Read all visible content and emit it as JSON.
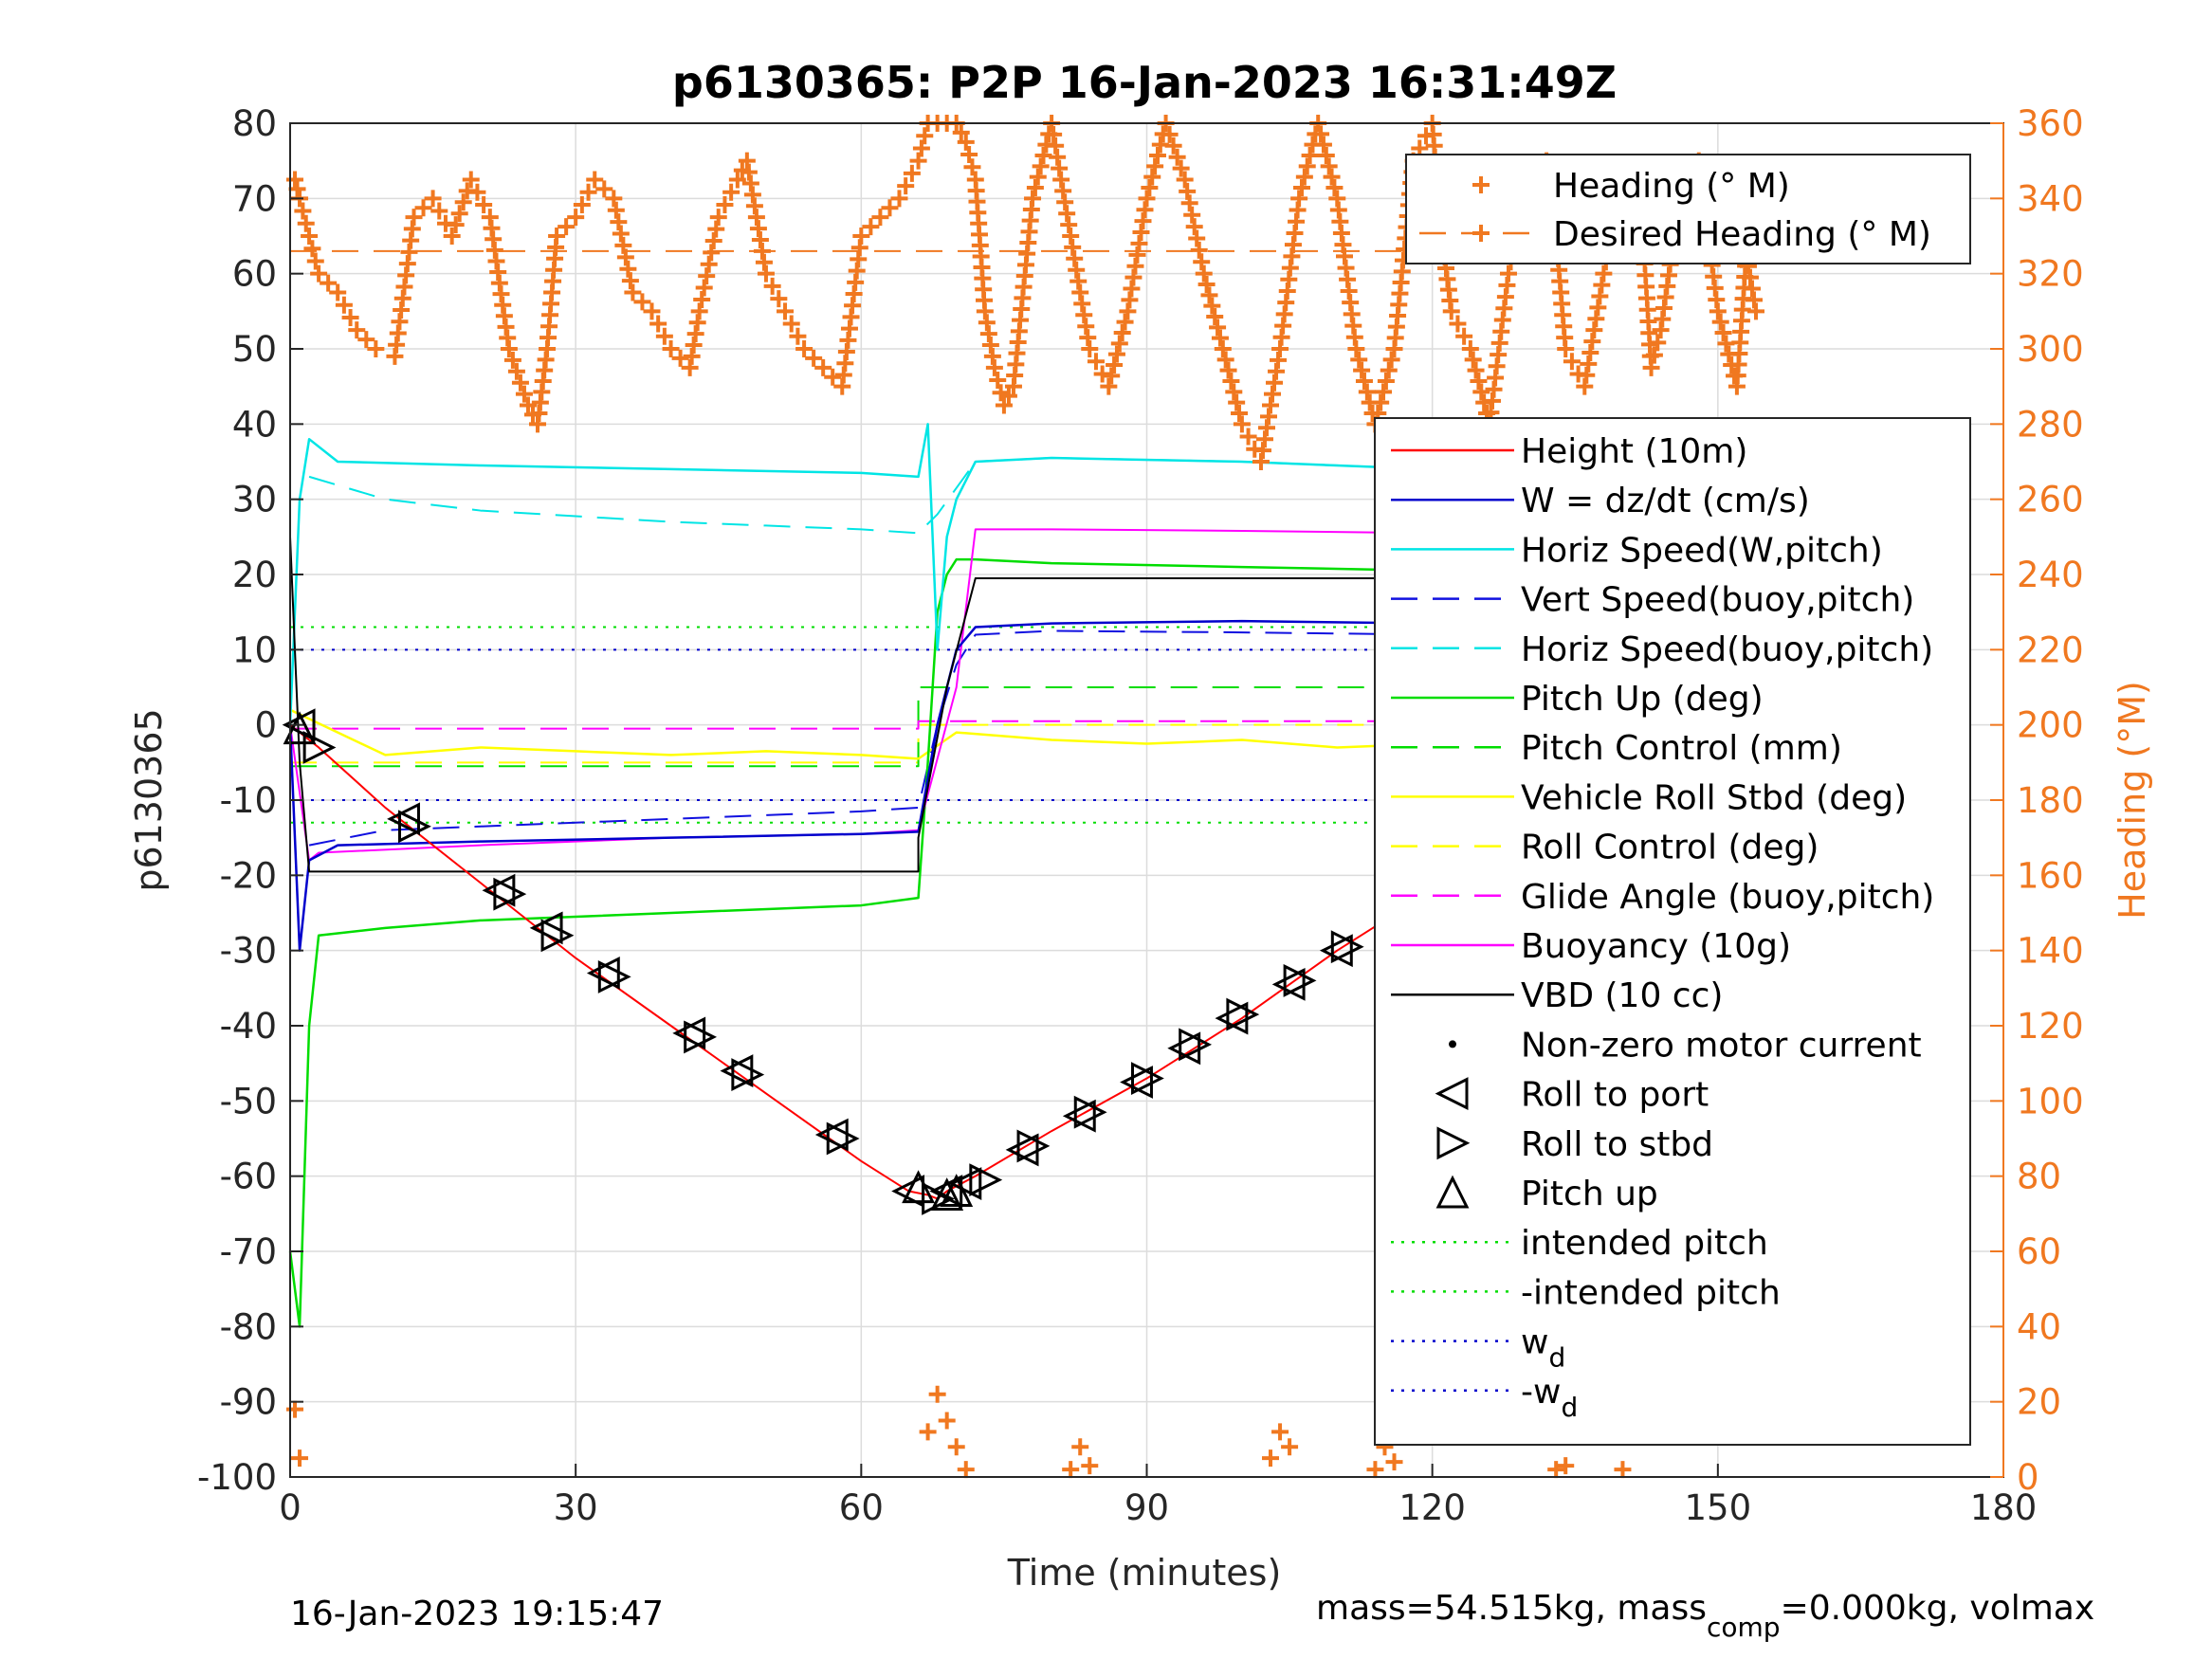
{
  "chart_data": {
    "type": "line",
    "title": "p6130365: P2P 16-Jan-2023 16:31:49Z",
    "xlabel": "Time (minutes)",
    "ylabel_left": "p6130365",
    "ylabel_right": "Heading (°M)",
    "xlim": [
      0,
      180
    ],
    "ylim_left": [
      -100,
      80
    ],
    "ylim_right": [
      0,
      360
    ],
    "x_ticks": [
      "0",
      "30",
      "60",
      "90",
      "120",
      "150",
      "180"
    ],
    "y_ticks_left": [
      "80",
      "70",
      "60",
      "50",
      "40",
      "30",
      "20",
      "10",
      "0",
      "-10",
      "-20",
      "-30",
      "-40",
      "-50",
      "-60",
      "-70",
      "-80",
      "-90",
      "-100"
    ],
    "y_ticks_right": [
      "360",
      "340",
      "320",
      "300",
      "280",
      "260",
      "240",
      "220",
      "200",
      "180",
      "160",
      "140",
      "120",
      "100",
      "80",
      "60",
      "40",
      "20",
      "0"
    ],
    "grid": true,
    "colors": {
      "heading": "#f07820",
      "height": "#ff0000",
      "w": "#0000cc",
      "horiz_w": "#00e5e5",
      "vert_buoy": "#1010e0",
      "horiz_buoy": "#00e5e5",
      "pitch_up": "#00dd00",
      "pitch_control": "#00dd00",
      "vehicle_roll": "#ffff00",
      "roll_control": "#ffff00",
      "glide_angle": "#ff00ff",
      "buoyancy": "#ff00ff",
      "vbd": "#000000",
      "intended_pitch": "#00dd00",
      "wd": "#0000cc"
    },
    "legend_top": [
      {
        "label": "Heading (° M)"
      },
      {
        "label": "Desired Heading (° M)"
      }
    ],
    "legend_main": [
      {
        "label": "Height (10m)"
      },
      {
        "label": "W = dz/dt (cm/s)"
      },
      {
        "label": "Horiz Speed(W,pitch)"
      },
      {
        "label": "Vert Speed(buoy,pitch)"
      },
      {
        "label": "Horiz Speed(buoy,pitch)"
      },
      {
        "label": "Pitch Up (deg)"
      },
      {
        "label": "Pitch Control (mm)"
      },
      {
        "label": "Vehicle Roll Stbd (deg)"
      },
      {
        "label": "Roll Control (deg)"
      },
      {
        "label": "Glide Angle (buoy,pitch)"
      },
      {
        "label": "Buoyancy (10g)"
      },
      {
        "label": "VBD (10 cc)"
      },
      {
        "label": "Non-zero motor current"
      },
      {
        "label": "Roll to port"
      },
      {
        "label": "Roll to stbd"
      },
      {
        "label": "Pitch up"
      },
      {
        "label": "intended pitch"
      },
      {
        "label": "-intended pitch"
      },
      {
        "label": "w",
        "sub": "d"
      },
      {
        "label": "-w",
        "sub": "d"
      }
    ],
    "series": [
      {
        "name": "Height (10m)",
        "x": [
          0,
          1,
          3,
          10,
          20,
          30,
          40,
          50,
          60,
          65,
          67,
          68,
          69,
          72,
          80,
          90,
          100,
          110,
          120,
          130,
          140,
          150,
          154
        ],
        "y": [
          0,
          -1,
          -3,
          -11,
          -21,
          -31,
          -40,
          -49,
          -58,
          -62,
          -62.5,
          -63,
          -62,
          -60,
          -54,
          -47,
          -39,
          -30,
          -22,
          -13.5,
          -7,
          -1,
          0
        ]
      },
      {
        "name": "W = dz/dt (cm/s)",
        "x": [
          0,
          1,
          2,
          5,
          20,
          40,
          60,
          66,
          68,
          70,
          72,
          80,
          100,
          120,
          140,
          150,
          153,
          154
        ],
        "y": [
          0,
          -30,
          -18,
          -16,
          -15.5,
          -15,
          -14.5,
          -14.2,
          0,
          10,
          13,
          13.5,
          13.8,
          13.5,
          13,
          12.5,
          8,
          6
        ]
      },
      {
        "name": "Horiz Speed(W,pitch)",
        "x": [
          0,
          1,
          2,
          5,
          20,
          40,
          60,
          66,
          67,
          68,
          69,
          70,
          72,
          80,
          100,
          120,
          140,
          150,
          153,
          154
        ],
        "y": [
          0,
          30,
          38,
          35,
          34.5,
          34,
          33.5,
          33,
          40,
          10,
          25,
          30,
          35,
          35.5,
          35,
          34,
          33,
          33,
          30,
          25
        ]
      },
      {
        "name": "Vert Speed(buoy,pitch)",
        "x": [
          2,
          10,
          20,
          40,
          60,
          66,
          68,
          70,
          72,
          80,
          100,
          120,
          140,
          150,
          154
        ],
        "y": [
          -16,
          -14,
          -13.5,
          -12.5,
          -11.5,
          -11,
          0,
          8,
          12,
          12.5,
          12.3,
          12,
          11.5,
          11,
          10.5
        ]
      },
      {
        "name": "Horiz Speed(buoy,pitch)",
        "x": [
          2,
          10,
          20,
          40,
          50,
          60,
          66,
          68,
          72,
          80,
          100,
          120,
          140,
          150,
          154
        ],
        "y": [
          33,
          30,
          28.5,
          27,
          26.5,
          26,
          25.5,
          28,
          35,
          35.5,
          35,
          34,
          33,
          32.5,
          32
        ]
      },
      {
        "name": "Pitch Up (deg)",
        "x": [
          0,
          1,
          1.5,
          2,
          3,
          10,
          20,
          40,
          60,
          66,
          67,
          68,
          69,
          70,
          72,
          80,
          100,
          120,
          140,
          150,
          153,
          154
        ],
        "y": [
          -70,
          -80,
          -60,
          -40,
          -28,
          -27,
          -26,
          -25,
          -24,
          -23,
          -5,
          15,
          20,
          22,
          22,
          21.5,
          21,
          20.5,
          20,
          19.5,
          18,
          16
        ]
      },
      {
        "name": "Pitch Control (mm)",
        "x": [
          0,
          66,
          66,
          154
        ],
        "y": [
          -5.5,
          -5.5,
          5,
          5
        ]
      },
      {
        "name": "Vehicle Roll Stbd (deg)",
        "x": [
          0,
          10,
          20,
          30,
          40,
          50,
          60,
          66,
          70,
          80,
          90,
          100,
          110,
          120,
          130,
          140,
          150,
          154
        ],
        "y": [
          2,
          -4,
          -3,
          -3.5,
          -4,
          -3.5,
          -4,
          -4.5,
          -1,
          -2,
          -2.5,
          -2,
          -3,
          -2.5,
          -3,
          -3,
          -2,
          -2
        ]
      },
      {
        "name": "Roll Control (deg)",
        "x": [
          0,
          66,
          66,
          154
        ],
        "y": [
          -5,
          -5,
          0,
          0
        ]
      },
      {
        "name": "Glide Angle (buoy,pitch)",
        "x": [
          0,
          66,
          66,
          154
        ],
        "y": [
          -0.5,
          -0.5,
          0.5,
          0.5
        ]
      },
      {
        "name": "Buoyancy (10g)",
        "x": [
          0,
          2,
          3,
          20,
          40,
          60,
          66,
          70,
          72,
          80,
          100,
          120,
          140,
          150,
          153
        ],
        "y": [
          0,
          -18,
          -17,
          -16,
          -15,
          -14.5,
          -14,
          5,
          26,
          26,
          25.8,
          25.5,
          25,
          24.5,
          22
        ]
      },
      {
        "name": "VBD (10 cc)",
        "x": [
          0,
          1,
          2,
          10,
          20,
          40,
          66,
          66,
          69,
          72,
          80,
          100,
          120,
          140,
          154
        ],
        "y": [
          25,
          -5,
          -19.5,
          -19.5,
          -19.5,
          -19.5,
          -19.5,
          -15,
          5,
          19.5,
          19.5,
          19.5,
          19.5,
          19.5,
          19.5
        ]
      },
      {
        "name": "Heading (° M)",
        "axis": "right",
        "x": [
          0.5,
          1,
          2,
          3,
          5,
          7,
          9,
          11,
          13,
          15,
          17,
          19,
          21,
          23,
          25,
          26,
          27,
          28,
          30,
          32,
          34,
          36,
          38,
          40,
          42,
          43,
          45,
          47,
          48,
          50,
          52,
          54,
          56,
          58,
          60,
          62,
          64,
          66,
          67,
          68,
          69,
          70,
          71,
          72,
          73,
          74,
          75,
          76,
          78,
          80,
          82,
          84,
          86,
          88,
          90,
          92,
          94,
          96,
          98,
          100,
          102,
          104,
          106,
          108,
          110,
          112,
          114,
          116,
          118,
          120,
          121,
          122,
          124,
          126,
          128,
          130,
          132,
          133,
          134,
          136,
          138,
          140,
          142,
          143,
          144,
          146,
          148,
          150,
          152,
          153,
          154
        ],
        "y": [
          345,
          340,
          330,
          320,
          315,
          305,
          300,
          298,
          335,
          340,
          330,
          345,
          335,
          300,
          285,
          280,
          300,
          330,
          335,
          345,
          340,
          315,
          310,
          300,
          295,
          310,
          335,
          345,
          350,
          320,
          310,
          300,
          295,
          290,
          330,
          335,
          340,
          350,
          360,
          360,
          360,
          360,
          355,
          345,
          310,
          295,
          285,
          290,
          340,
          360,
          330,
          300,
          290,
          310,
          340,
          360,
          345,
          320,
          300,
          280,
          270,
          300,
          340,
          360,
          340,
          300,
          280,
          300,
          350,
          360,
          330,
          310,
          300,
          280,
          320,
          345,
          350,
          330,
          300,
          290,
          320,
          345,
          335,
          295,
          305,
          340,
          350,
          310,
          290,
          325,
          310
        ]
      },
      {
        "name": "Heading (° M) wrap",
        "axis": "right",
        "x": [
          0.5,
          1,
          67,
          68,
          69,
          70,
          71,
          82,
          83,
          84,
          103,
          104,
          105,
          114,
          115,
          116,
          133,
          134,
          140
        ],
        "y": [
          18,
          5,
          12,
          22,
          15,
          8,
          2,
          2,
          8,
          3,
          5,
          12,
          8,
          2,
          8,
          4,
          2,
          3,
          2
        ]
      },
      {
        "name": "Desired Heading (° M)",
        "axis": "right",
        "x": [
          0,
          154
        ],
        "y": [
          326,
          326
        ]
      },
      {
        "name": "intended pitch",
        "x": [
          0,
          154
        ],
        "y": [
          13,
          13
        ]
      },
      {
        "name": "-intended pitch",
        "x": [
          0,
          154
        ],
        "y": [
          -13,
          -13
        ]
      },
      {
        "name": "w_d",
        "x": [
          0,
          154
        ],
        "y": [
          10,
          10
        ]
      },
      {
        "name": "-w_d",
        "x": [
          0,
          154
        ],
        "y": [
          -10,
          -10
        ]
      }
    ],
    "markers": {
      "roll_to_port": [
        [
          1,
          0
        ],
        [
          12,
          -12.5
        ],
        [
          22,
          -22
        ],
        [
          27,
          -27
        ],
        [
          33,
          -33
        ],
        [
          42,
          -41
        ],
        [
          47,
          -46
        ],
        [
          57,
          -54.5
        ],
        [
          65,
          -62
        ],
        [
          69,
          -62
        ],
        [
          71,
          -61
        ],
        [
          77,
          -56.5
        ],
        [
          83,
          -52
        ],
        [
          89,
          -47.5
        ],
        [
          94,
          -43
        ],
        [
          99,
          -39
        ],
        [
          105,
          -34.5
        ],
        [
          110,
          -30
        ],
        [
          116,
          -25.5
        ],
        [
          121,
          -21
        ],
        [
          127,
          -17.5
        ],
        [
          131,
          -14.5
        ],
        [
          134,
          -12.5
        ],
        [
          138,
          -10
        ],
        [
          141,
          -8
        ],
        [
          144,
          -5.5
        ],
        [
          147,
          -4
        ],
        [
          150,
          -2
        ],
        [
          152,
          -1
        ]
      ],
      "roll_to_stbd": [
        [
          3,
          -3
        ],
        [
          13,
          -13.5
        ],
        [
          23,
          -22.5
        ],
        [
          28,
          -28
        ],
        [
          34,
          -33.5
        ],
        [
          43,
          -41.5
        ],
        [
          48,
          -46.5
        ],
        [
          58,
          -55
        ],
        [
          68,
          -63
        ],
        [
          73,
          -60.5
        ],
        [
          78,
          -56
        ],
        [
          84,
          -51.5
        ],
        [
          90,
          -47
        ],
        [
          95,
          -42.5
        ],
        [
          100,
          -38.5
        ],
        [
          106,
          -34
        ],
        [
          111,
          -29.5
        ],
        [
          117,
          -25
        ],
        [
          122,
          -20.5
        ],
        [
          128,
          -16.5
        ],
        [
          132,
          -14
        ],
        [
          135,
          -12
        ],
        [
          139,
          -9.5
        ],
        [
          142,
          -7.5
        ],
        [
          145,
          -5
        ],
        [
          148,
          -3.5
        ],
        [
          151,
          -1.5
        ]
      ],
      "pitch_up": [
        [
          1,
          -0.5
        ],
        [
          66,
          -61.5
        ],
        [
          69,
          -62.5
        ],
        [
          70,
          -62
        ]
      ]
    }
  },
  "footer": {
    "date": "16-Jan-2023 19:15:47",
    "mass_text": "mass=54.515kg, mass",
    "mass_sub": "comp",
    "mass_rest": "=0.000kg, volmax"
  }
}
